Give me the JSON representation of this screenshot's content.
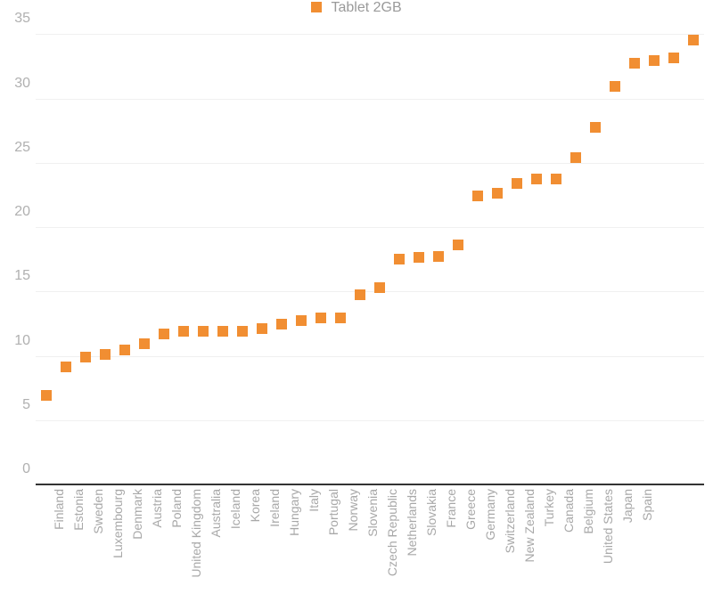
{
  "chart": {
    "type": "scatter",
    "legend": {
      "label": "Tablet 2GB",
      "swatch_color": "#f18e32",
      "text_color": "#9a9a9a",
      "fontsize": 16
    },
    "background_color": "#ffffff",
    "grid_color": "#f0f0f0",
    "baseline_color": "#333333",
    "marker": {
      "shape": "square",
      "size": 12,
      "color": "#f18e32"
    },
    "axis_label_color": "#b0b0b0",
    "axis_label_fontsize": 16,
    "xlabel_color": "#a8a8a8",
    "xlabel_fontsize": 14,
    "ylim": [
      0,
      36
    ],
    "yticks": [
      0,
      5,
      10,
      15,
      20,
      25,
      30,
      35
    ],
    "categories": [
      "Finland",
      "Estonia",
      "Sweden",
      "Luxembourg",
      "Denmark",
      "Austria",
      "Poland",
      "United Kingdom",
      "Australia",
      "Iceland",
      "Korea",
      "Ireland",
      "Hungary",
      "Italy",
      "Portugal",
      "Norway",
      "Slovenia",
      "Czech Republic",
      "Netherlands",
      "Slovakia",
      "France",
      "Greece",
      "Germany",
      "Switzerland",
      "New Zealand",
      "Turkey",
      "Canada",
      "Belgium",
      "United States",
      "Japan",
      "Spain"
    ],
    "values": [
      7.0,
      9.2,
      10.0,
      10.2,
      10.5,
      11.0,
      11.8,
      12.0,
      12.0,
      12.0,
      12.0,
      12.2,
      12.5,
      12.8,
      13.0,
      13.0,
      14.8,
      15.4,
      17.6,
      17.7,
      17.8,
      18.7,
      22.5,
      22.7,
      23.5,
      23.8,
      23.8,
      25.5,
      27.8,
      31.0,
      32.8
    ],
    "extra_values": [
      33.0,
      33.2,
      34.6
    ]
  }
}
